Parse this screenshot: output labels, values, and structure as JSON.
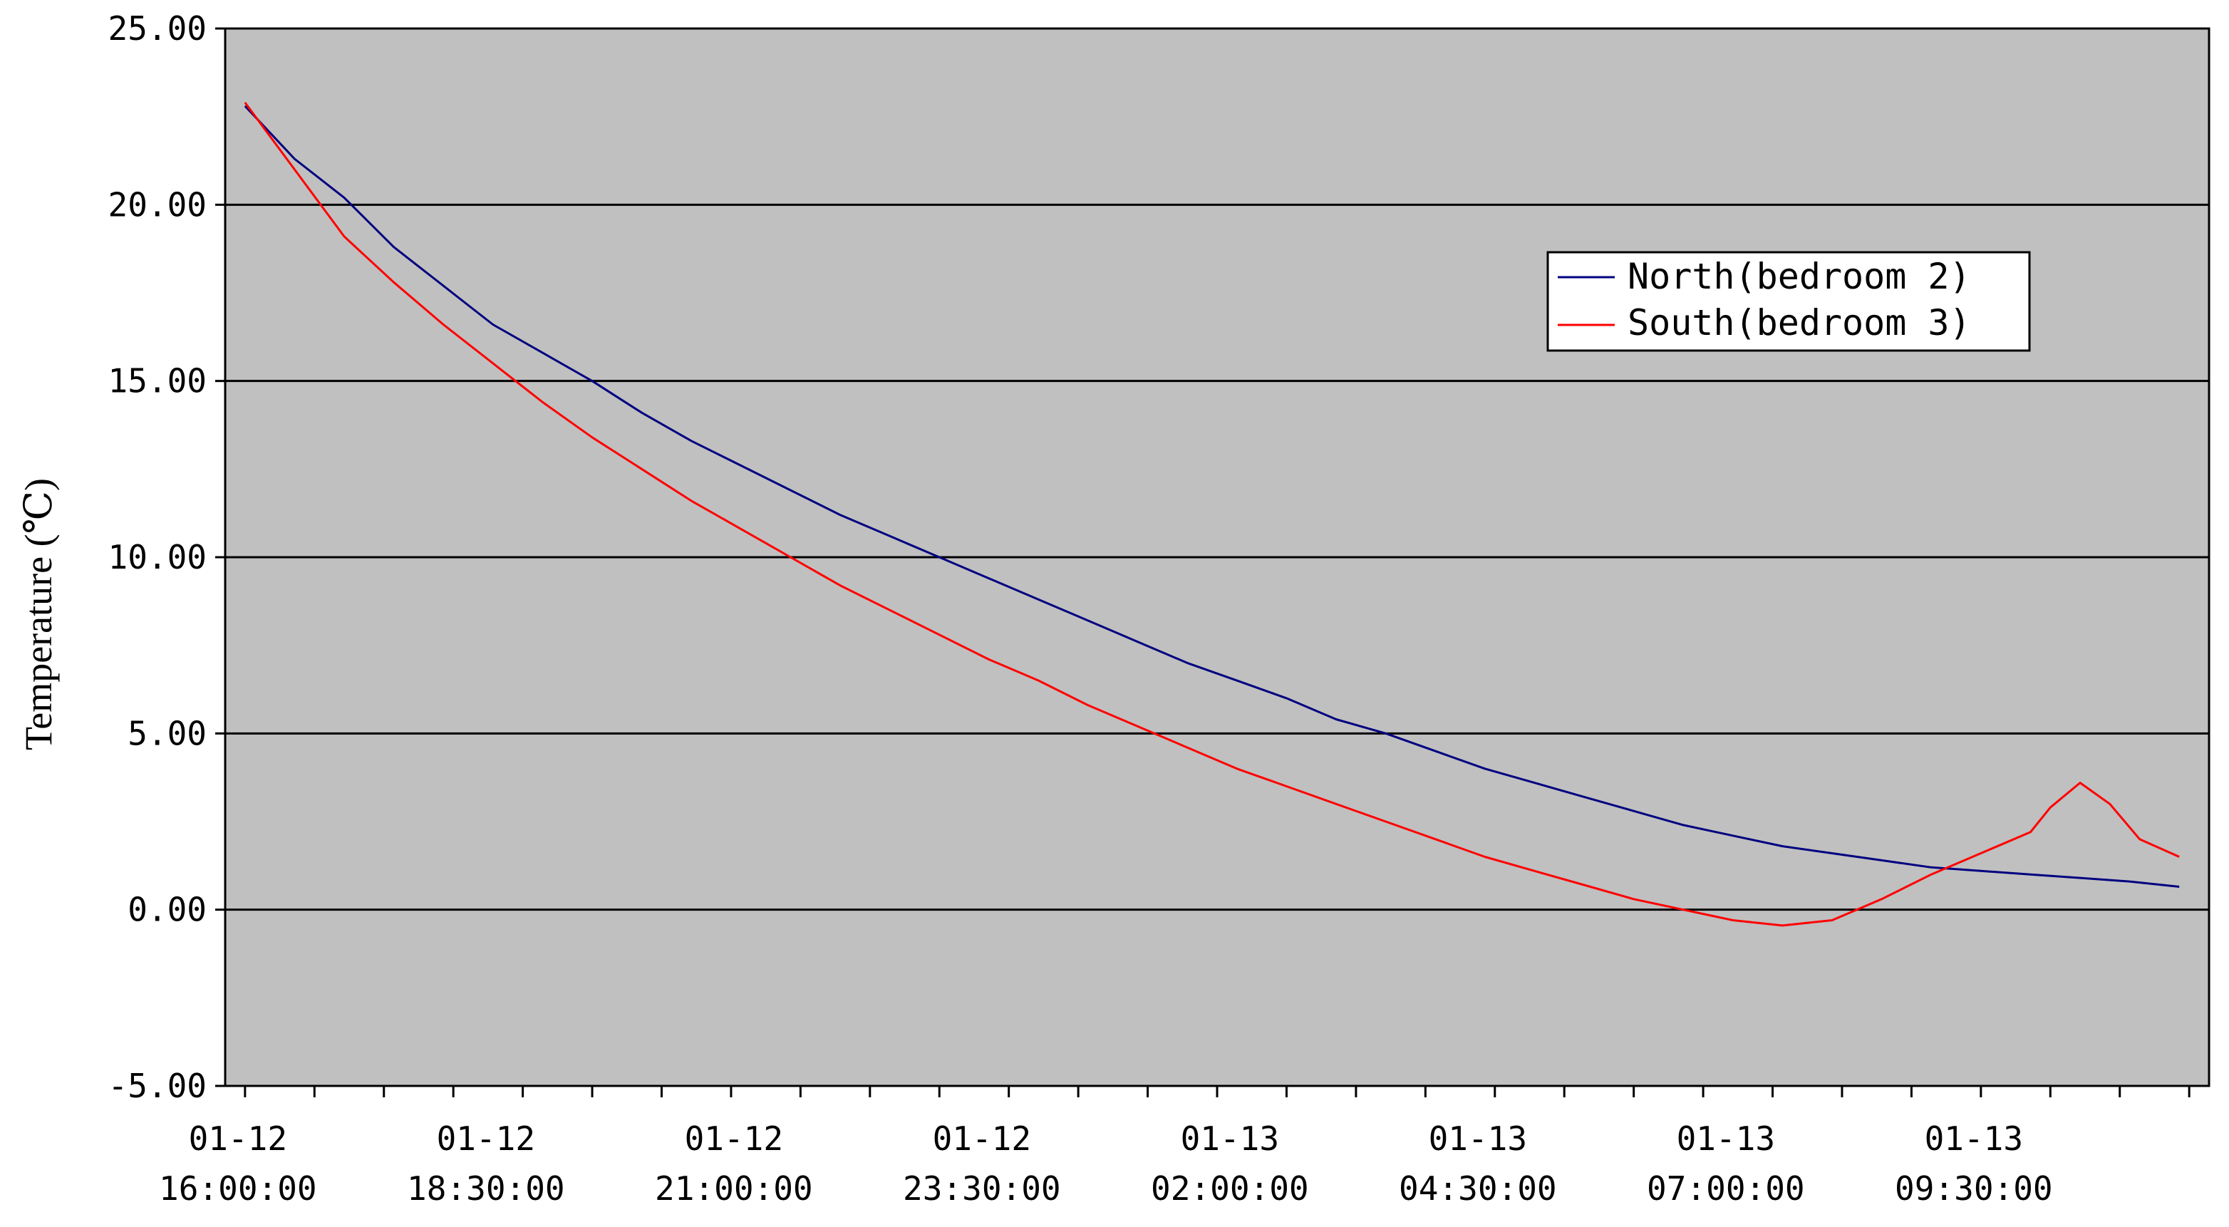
{
  "chart_data": {
    "type": "line",
    "title": "",
    "xlabel": "",
    "ylabel": "Temperature (℃)",
    "ylim": [
      -5,
      25
    ],
    "yticks": [
      "25.00",
      "20.00",
      "15.00",
      "10.00",
      "5.00",
      "0.00",
      "-5.00"
    ],
    "xlim": [
      -0.2,
      19.8
    ],
    "xtick_positions": [
      0,
      2.5,
      5,
      7.5,
      10,
      12.5,
      15,
      17.5
    ],
    "xticks": [
      {
        "date": "01-12",
        "time": "16:00:00"
      },
      {
        "date": "01-12",
        "time": "18:30:00"
      },
      {
        "date": "01-12",
        "time": "21:00:00"
      },
      {
        "date": "01-12",
        "time": "23:30:00"
      },
      {
        "date": "01-13",
        "time": "02:00:00"
      },
      {
        "date": "01-13",
        "time": "04:30:00"
      },
      {
        "date": "01-13",
        "time": "07:00:00"
      },
      {
        "date": "01-13",
        "time": "09:30:00"
      }
    ],
    "grid": true,
    "legend_position": "top-right",
    "background": "#c0c0c0",
    "series": [
      {
        "name": "North(bedroom 2)",
        "color": "#000080",
        "x": [
          0,
          0.5,
          1,
          1.5,
          2,
          2.5,
          3,
          3.5,
          4,
          4.5,
          5,
          5.5,
          6,
          6.5,
          7,
          7.5,
          8,
          8.5,
          9,
          9.5,
          10,
          10.5,
          11,
          11.5,
          12,
          12.5,
          13,
          13.5,
          14,
          14.5,
          15,
          15.5,
          16,
          16.5,
          17,
          17.5,
          18,
          18.5,
          19,
          19.5
        ],
        "values": [
          22.8,
          21.3,
          20.2,
          18.8,
          17.7,
          16.6,
          15.8,
          15.0,
          14.1,
          13.3,
          12.6,
          11.9,
          11.2,
          10.6,
          10.0,
          9.4,
          8.8,
          8.2,
          7.6,
          7.0,
          6.5,
          6.0,
          5.4,
          5.0,
          4.5,
          4.0,
          3.6,
          3.2,
          2.8,
          2.4,
          2.1,
          1.8,
          1.6,
          1.4,
          1.2,
          1.1,
          1.0,
          0.9,
          0.8,
          0.65
        ]
      },
      {
        "name": "South(bedroom 3)",
        "color": "#ff0000",
        "x": [
          0,
          0.5,
          1,
          1.5,
          2,
          2.5,
          3,
          3.5,
          4,
          4.5,
          5,
          5.5,
          6,
          6.5,
          7,
          7.5,
          8,
          8.5,
          9,
          9.5,
          10,
          10.5,
          11,
          11.5,
          12,
          12.5,
          13,
          13.5,
          14,
          14.5,
          15,
          15.5,
          16,
          16.5,
          17,
          17.5,
          18,
          18.2,
          18.5,
          18.8,
          19.1,
          19.5
        ],
        "values": [
          22.9,
          21.0,
          19.1,
          17.8,
          16.6,
          15.5,
          14.4,
          13.4,
          12.5,
          11.6,
          10.8,
          10.0,
          9.2,
          8.5,
          7.8,
          7.1,
          6.5,
          5.8,
          5.2,
          4.6,
          4.0,
          3.5,
          3.0,
          2.5,
          2.0,
          1.5,
          1.1,
          0.7,
          0.3,
          0.0,
          -0.3,
          -0.45,
          -0.3,
          0.3,
          1.0,
          1.6,
          2.2,
          2.9,
          3.6,
          3.0,
          2.0,
          1.5
        ]
      }
    ]
  }
}
